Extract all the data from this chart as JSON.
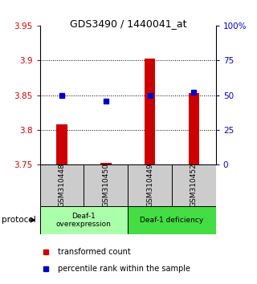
{
  "title": "GDS3490 / 1440041_at",
  "samples": [
    "GSM310448",
    "GSM310450",
    "GSM310449",
    "GSM310452"
  ],
  "transformed_count": [
    3.808,
    3.753,
    3.903,
    3.853
  ],
  "percentile_rank_pct": [
    50,
    46,
    50,
    52
  ],
  "ylim_left": [
    3.75,
    3.95
  ],
  "ylim_right": [
    0,
    100
  ],
  "yticks_left": [
    3.75,
    3.8,
    3.85,
    3.9,
    3.95
  ],
  "yticks_right": [
    0,
    25,
    50,
    75,
    100
  ],
  "ytick_labels_right": [
    "0",
    "25",
    "50",
    "75",
    "100%"
  ],
  "bar_color": "#cc0000",
  "dot_color": "#0000cc",
  "groups": [
    {
      "label": "Deaf-1\noverexpression",
      "samples": [
        0,
        1
      ],
      "color": "#aaffaa"
    },
    {
      "label": "Deaf-1 deficiency",
      "samples": [
        2,
        3
      ],
      "color": "#44dd44"
    }
  ],
  "legend_red_label": "transformed count",
  "legend_blue_label": "percentile rank within the sample",
  "protocol_label": "protocol",
  "sample_box_color": "#cccccc",
  "bar_width": 0.25
}
